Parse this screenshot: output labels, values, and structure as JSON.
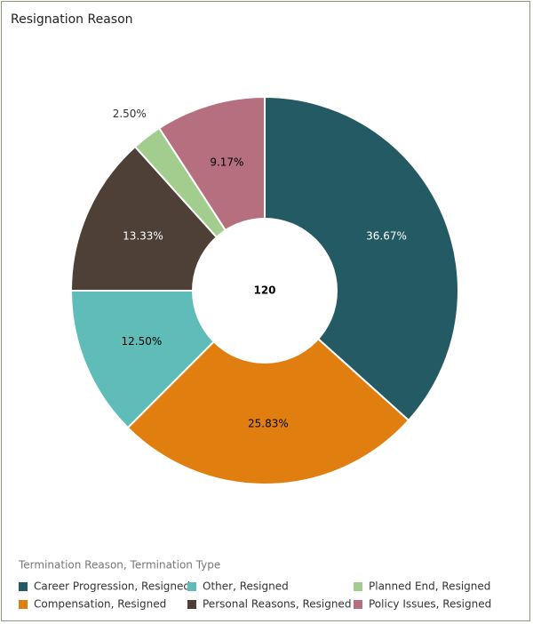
{
  "chart_data": {
    "type": "donut",
    "title": "Resignation Reason",
    "center_label": 120,
    "legend_title": "Termination Reason, Termination Type",
    "categories": [
      "Career Progression, Resigned",
      "Compensation, Resigned",
      "Other, Resigned",
      "Personal Reasons, Resigned",
      "Planned End, Resigned",
      "Policy Issues, Resigned"
    ],
    "values": [
      36.67,
      25.83,
      12.5,
      13.33,
      2.5,
      9.17
    ],
    "value_labels": [
      "36.67%",
      "25.83%",
      "12.50%",
      "13.33%",
      "2.50%",
      "9.17%"
    ],
    "colors": [
      "#245a63",
      "#e07f10",
      "#5fbcb8",
      "#4e4037",
      "#a3cd8f",
      "#b56f7f"
    ],
    "legend_position": "bottom"
  }
}
